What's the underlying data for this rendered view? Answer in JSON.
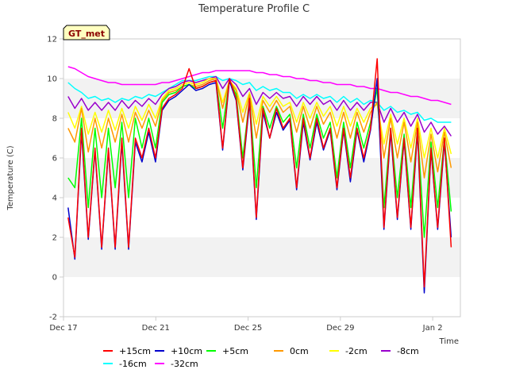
{
  "chart_data": {
    "type": "line",
    "title": "Temperature Profile C",
    "xlabel": "Time",
    "ylabel": "Temperature (C)",
    "ylim": [
      -2,
      12
    ],
    "yticks": [
      -2,
      0,
      2,
      4,
      6,
      8,
      10,
      12
    ],
    "xlim": [
      0,
      17.2
    ],
    "xticks": [
      {
        "label": "Dec 17",
        "day": 0
      },
      {
        "label": "Dec 21",
        "day": 4
      },
      {
        "label": "Dec 25",
        "day": 8
      },
      {
        "label": "Dec 29",
        "day": 12
      },
      {
        "label": "Jan 2",
        "day": 16
      }
    ],
    "x_start": 0.2,
    "x_end": 16.8,
    "grid": "alternating horizontal bands",
    "badge": "GT_met",
    "legend_position": "bottom",
    "series": [
      {
        "name": "+15cm",
        "color": "#ff0000",
        "values": [
          3.0,
          1.0,
          7.5,
          2.0,
          6.5,
          1.5,
          6.5,
          1.5,
          7.0,
          1.5,
          7.0,
          6.0,
          7.5,
          6.0,
          8.5,
          9.0,
          9.2,
          9.5,
          10.5,
          9.5,
          9.6,
          9.8,
          9.9,
          6.5,
          10.0,
          9.0,
          5.5,
          9.0,
          3.0,
          8.5,
          7.0,
          8.5,
          7.5,
          8.0,
          4.5,
          8.0,
          6.0,
          8.0,
          6.5,
          7.5,
          4.5,
          7.5,
          5.0,
          7.5,
          6.0,
          7.5,
          11.0,
          2.5,
          7.5,
          3.0,
          7.0,
          2.5,
          7.5,
          -0.5,
          6.5,
          2.5,
          7.0,
          1.5
        ]
      },
      {
        "name": "+10cm",
        "color": "#0000cc",
        "values": [
          3.5,
          0.9,
          7.3,
          1.9,
          6.4,
          1.4,
          6.4,
          1.4,
          6.8,
          1.4,
          6.8,
          5.8,
          7.3,
          5.8,
          8.4,
          8.9,
          9.1,
          9.4,
          9.7,
          9.4,
          9.5,
          9.7,
          9.8,
          6.4,
          9.9,
          8.9,
          5.4,
          8.8,
          2.9,
          8.3,
          7.0,
          8.3,
          7.4,
          7.9,
          4.4,
          7.8,
          5.9,
          7.8,
          6.4,
          7.4,
          4.4,
          7.4,
          4.8,
          7.4,
          5.8,
          7.4,
          10.0,
          2.4,
          7.3,
          2.9,
          6.9,
          2.4,
          7.3,
          -0.8,
          6.4,
          2.4,
          6.8,
          2.0
        ]
      },
      {
        "name": "+5cm",
        "color": "#00ff00",
        "values": [
          5.0,
          4.5,
          8.0,
          3.5,
          7.5,
          4.0,
          7.5,
          4.5,
          7.8,
          4.0,
          8.0,
          6.5,
          8.0,
          6.5,
          8.8,
          9.2,
          9.3,
          9.6,
          9.7,
          9.5,
          9.6,
          9.8,
          9.9,
          7.5,
          9.9,
          9.2,
          6.0,
          9.0,
          4.5,
          8.6,
          7.5,
          8.6,
          7.8,
          8.2,
          5.5,
          8.2,
          6.5,
          8.2,
          7.0,
          7.8,
          5.0,
          7.8,
          5.5,
          7.8,
          6.5,
          7.8,
          9.5,
          3.5,
          7.5,
          4.0,
          7.2,
          3.5,
          7.5,
          2.0,
          6.8,
          3.5,
          7.0,
          3.3
        ]
      },
      {
        "name": "0cm",
        "color": "#ff9900",
        "values": [
          7.5,
          6.8,
          8.5,
          6.3,
          8.0,
          6.5,
          8.0,
          6.8,
          8.2,
          6.8,
          8.3,
          7.5,
          8.4,
          7.6,
          8.9,
          9.3,
          9.4,
          9.6,
          9.7,
          9.6,
          9.7,
          9.9,
          10.0,
          8.5,
          9.9,
          9.4,
          7.8,
          9.2,
          7.0,
          8.9,
          8.3,
          8.9,
          8.3,
          8.6,
          7.3,
          8.6,
          7.5,
          8.6,
          7.7,
          8.3,
          7.0,
          8.3,
          7.0,
          8.3,
          7.3,
          8.3,
          8.8,
          6.0,
          8.0,
          6.0,
          7.8,
          5.8,
          7.8,
          5.0,
          7.2,
          5.3,
          7.3,
          5.5
        ]
      },
      {
        "name": "-2cm",
        "color": "#ffff00",
        "values": [
          8.3,
          7.5,
          8.6,
          7.2,
          8.3,
          7.3,
          8.4,
          7.4,
          8.5,
          7.5,
          8.6,
          7.9,
          8.7,
          8.0,
          9.0,
          9.4,
          9.5,
          9.7,
          9.8,
          9.7,
          9.8,
          10.0,
          10.0,
          8.8,
          9.9,
          9.5,
          8.3,
          9.3,
          7.7,
          9.1,
          8.6,
          9.1,
          8.6,
          8.8,
          7.8,
          8.8,
          8.0,
          8.8,
          8.1,
          8.6,
          7.6,
          8.6,
          7.6,
          8.5,
          7.8,
          8.5,
          8.7,
          6.7,
          8.2,
          6.7,
          8.0,
          6.5,
          8.0,
          6.0,
          7.5,
          6.0,
          7.5,
          6.2
        ]
      },
      {
        "name": "-8cm",
        "color": "#9900cc",
        "values": [
          9.1,
          8.5,
          9.0,
          8.4,
          8.8,
          8.4,
          8.8,
          8.4,
          8.9,
          8.5,
          8.9,
          8.6,
          9.0,
          8.7,
          9.2,
          9.5,
          9.6,
          9.8,
          9.9,
          9.8,
          9.9,
          10.0,
          10.1,
          9.5,
          10.0,
          9.7,
          9.1,
          9.5,
          8.7,
          9.3,
          9.0,
          9.3,
          9.0,
          9.1,
          8.6,
          9.1,
          8.7,
          9.1,
          8.7,
          8.9,
          8.4,
          8.9,
          8.4,
          8.8,
          8.4,
          8.8,
          8.8,
          7.8,
          8.5,
          7.8,
          8.3,
          7.6,
          8.2,
          7.3,
          7.8,
          7.2,
          7.6,
          7.1
        ]
      },
      {
        "name": "-16cm",
        "color": "#00ffff",
        "values": [
          9.8,
          9.5,
          9.3,
          9.0,
          9.1,
          8.9,
          9.0,
          8.8,
          9.0,
          8.9,
          9.1,
          9.0,
          9.2,
          9.1,
          9.3,
          9.5,
          9.7,
          9.9,
          9.9,
          9.9,
          10.0,
          10.1,
          10.1,
          9.9,
          10.0,
          9.9,
          9.7,
          9.8,
          9.4,
          9.6,
          9.4,
          9.5,
          9.3,
          9.3,
          9.0,
          9.2,
          9.0,
          9.2,
          9.0,
          9.1,
          8.8,
          9.1,
          8.8,
          9.0,
          8.7,
          8.9,
          8.8,
          8.4,
          8.6,
          8.3,
          8.4,
          8.2,
          8.3,
          7.9,
          8.0,
          7.8,
          7.8,
          7.8
        ]
      },
      {
        "name": "-32cm",
        "color": "#ff00ff",
        "values": [
          10.6,
          10.5,
          10.3,
          10.1,
          10.0,
          9.9,
          9.8,
          9.8,
          9.7,
          9.7,
          9.7,
          9.7,
          9.7,
          9.7,
          9.8,
          9.8,
          9.9,
          10.0,
          10.1,
          10.2,
          10.3,
          10.3,
          10.4,
          10.4,
          10.4,
          10.4,
          10.4,
          10.4,
          10.3,
          10.3,
          10.2,
          10.2,
          10.1,
          10.1,
          10.0,
          10.0,
          9.9,
          9.9,
          9.8,
          9.8,
          9.7,
          9.7,
          9.7,
          9.6,
          9.6,
          9.5,
          9.5,
          9.4,
          9.3,
          9.3,
          9.2,
          9.1,
          9.1,
          9.0,
          8.9,
          8.9,
          8.8,
          8.7
        ]
      }
    ]
  }
}
